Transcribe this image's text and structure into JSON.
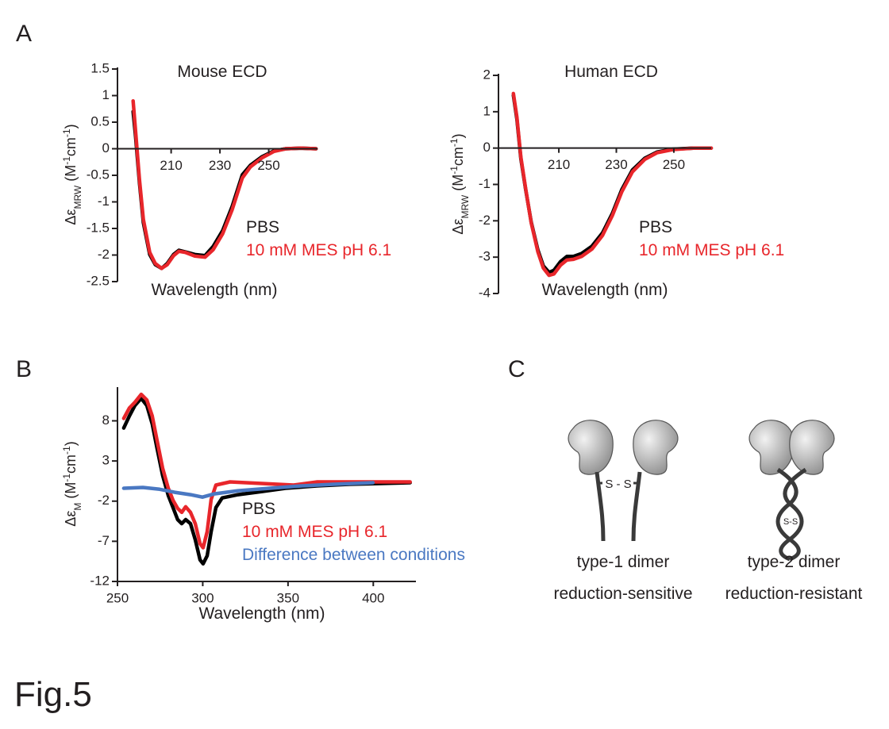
{
  "panel_labels": [
    "A",
    "B",
    "C"
  ],
  "figure_label": "Fig.5",
  "chart_data": [
    {
      "type": "line",
      "title": "Mouse ECD",
      "x_label": "Wavelength (nm)",
      "y_label": [
        [
          "Δε",
          ""
        ],
        [
          "MRW",
          "sub"
        ],
        [
          " (M",
          ""
        ],
        [
          "-1",
          "sup"
        ],
        [
          "cm",
          ""
        ],
        [
          "-1",
          "sup"
        ],
        [
          ")",
          ""
        ]
      ],
      "xlim": [
        188,
        270
      ],
      "xticks": [
        210,
        230,
        250
      ],
      "ylim": [
        -2.5,
        1.5
      ],
      "yticks": [
        1.5,
        1,
        0.5,
        0,
        -0.5,
        -1,
        -1.5,
        -2,
        -2.5
      ],
      "x_axis_at": "zero",
      "legend": "lower right",
      "series": [
        {
          "name": "PBS",
          "color": "#000000",
          "x": [
            194.4,
            195.4,
            197,
            198.6,
            201.2,
            203.5,
            206.1,
            208.4,
            211,
            213.2,
            215.8,
            219.7,
            223.9,
            227.2,
            231.1,
            235,
            239.2,
            242.5,
            247.3,
            252.2,
            257,
            263.6,
            269.4
          ],
          "values": [
            0.7,
            0.25,
            -0.64,
            -1.39,
            -1.99,
            -2.18,
            -2.25,
            -2.16,
            -1.99,
            -1.91,
            -1.94,
            -1.99,
            -2.01,
            -1.84,
            -1.54,
            -1.09,
            -0.49,
            -0.31,
            -0.15,
            -0.04,
            0,
            0.01,
            0
          ]
        },
        {
          "name": "10 mM MES pH 6.1",
          "color": "#e8262b",
          "x": [
            194.4,
            195.4,
            197,
            198.6,
            201.2,
            203.5,
            206.1,
            208.4,
            211,
            213.2,
            215.8,
            219.7,
            223.9,
            227.2,
            231.1,
            235,
            239.2,
            242.5,
            247.3,
            252.2,
            257,
            263.6,
            269.4
          ],
          "values": [
            0.9,
            0.35,
            -0.58,
            -1.33,
            -1.95,
            -2.16,
            -2.25,
            -2.18,
            -2.01,
            -1.93,
            -1.95,
            -2.02,
            -2.04,
            -1.9,
            -1.6,
            -1.15,
            -0.55,
            -0.34,
            -0.17,
            -0.05,
            0,
            0.01,
            0
          ]
        }
      ]
    },
    {
      "type": "line",
      "title": "Human ECD",
      "x_label": "Wavelength (nm)",
      "y_label": [
        [
          "Δε",
          ""
        ],
        [
          "MRW",
          "sub"
        ],
        [
          " (M",
          ""
        ],
        [
          "-1",
          "sup"
        ],
        [
          "cm",
          ""
        ],
        [
          "-1",
          "sup"
        ],
        [
          ")",
          ""
        ]
      ],
      "xlim": [
        189,
        263
      ],
      "xticks": [
        210,
        230,
        250
      ],
      "ylim": [
        -4,
        2
      ],
      "yticks": [
        2,
        1,
        0,
        -1,
        -2,
        -3,
        -4
      ],
      "x_axis_at": "zero",
      "legend": "lower right",
      "series": [
        {
          "name": "PBS",
          "color": "#000000",
          "x": [
            194.2,
            195.4,
            196.8,
            198.5,
            200.4,
            202.7,
            204.6,
            206.6,
            208.3,
            210.6,
            212.8,
            215.1,
            217.9,
            221.5,
            225.2,
            228.6,
            231.9,
            235.6,
            239.9,
            244.1,
            249.7,
            256.8,
            263
          ],
          "values": [
            1.45,
            0.8,
            -0.29,
            -1.16,
            -2.04,
            -2.8,
            -3.24,
            -3.42,
            -3.36,
            -3.12,
            -2.98,
            -2.98,
            -2.9,
            -2.7,
            -2.33,
            -1.8,
            -1.14,
            -0.6,
            -0.28,
            -0.11,
            -0.03,
            0,
            0
          ]
        },
        {
          "name": "10 mM MES pH 6.1",
          "color": "#e8262b",
          "x": [
            194.2,
            195.4,
            196.8,
            198.5,
            200.4,
            202.7,
            204.6,
            206.6,
            208.3,
            210.6,
            212.8,
            215.1,
            217.9,
            221.5,
            225.2,
            228.6,
            231.9,
            235.6,
            239.9,
            244.1,
            249.7,
            256.8,
            263
          ],
          "values": [
            1.5,
            0.85,
            -0.25,
            -1.14,
            -2.06,
            -2.85,
            -3.3,
            -3.5,
            -3.46,
            -3.22,
            -3.08,
            -3.06,
            -2.98,
            -2.78,
            -2.4,
            -1.86,
            -1.2,
            -0.65,
            -0.31,
            -0.13,
            -0.04,
            0,
            0
          ]
        }
      ]
    },
    {
      "type": "line",
      "x_label": "Wavelength (nm)",
      "y_label": [
        [
          "Δε",
          ""
        ],
        [
          "M",
          "sub"
        ],
        [
          " (M",
          ""
        ],
        [
          "-1",
          "sup"
        ],
        [
          "cm",
          ""
        ],
        [
          "-1",
          "sup"
        ],
        [
          ")",
          ""
        ]
      ],
      "xlim": [
        250,
        425
      ],
      "xticks": [
        250,
        300,
        350,
        400
      ],
      "ylim": [
        -12,
        12
      ],
      "yticks": [
        8,
        3,
        -2,
        -7,
        -12
      ],
      "x_axis_at": "bottom",
      "legend": "lower right",
      "series": [
        {
          "name": "PBS",
          "color": "#000000",
          "x": [
            253.7,
            257,
            260.2,
            263.9,
            267.2,
            270.4,
            273.2,
            276.5,
            279.8,
            282.6,
            285.3,
            287.7,
            290,
            292.8,
            295.6,
            298.4,
            300.2,
            302.6,
            304.9,
            307.7,
            311.4,
            320.7,
            334.7,
            348.6,
            367.2,
            385.8,
            404.4,
            421.6
          ],
          "values": [
            7.1,
            8.6,
            9.9,
            10.8,
            9.9,
            7.6,
            4.6,
            1.2,
            -1.3,
            -2.8,
            -4.3,
            -4.8,
            -4.3,
            -4.8,
            -6.8,
            -9.3,
            -9.8,
            -8.8,
            -5.8,
            -2.8,
            -1.6,
            -1.2,
            -0.8,
            -0.4,
            -0.1,
            0.1,
            0.2,
            0.3
          ]
        },
        {
          "name": "10 mM MES pH 6.1",
          "color": "#e8262b",
          "x": [
            253.7,
            257,
            260.2,
            263.9,
            267.2,
            270.4,
            273.2,
            276.5,
            279.8,
            282.6,
            285.3,
            287.7,
            290,
            292.8,
            295.6,
            298.4,
            300.2,
            302.6,
            304.9,
            307.7,
            316,
            334.7,
            353.3,
            367.2,
            385.8,
            404.4,
            421.6
          ],
          "values": [
            8.3,
            9.6,
            10.3,
            11.3,
            10.6,
            8.6,
            5.6,
            2.1,
            -0.4,
            -1.9,
            -2.9,
            -3.4,
            -2.7,
            -3.4,
            -4.8,
            -7.3,
            -7.8,
            -5.8,
            -1.8,
            0,
            0.4,
            0.2,
            0,
            0.4,
            0.4,
            0.4,
            0.4
          ]
        },
        {
          "name": "Difference between conditions",
          "color": "#4a78c2",
          "x": [
            253.7,
            264.9,
            274.2,
            283.5,
            292.8,
            299.8,
            306.8,
            320.7,
            339.3,
            358,
            376.6,
            399.8
          ],
          "values": [
            -0.4,
            -0.3,
            -0.5,
            -0.9,
            -1.2,
            -1.5,
            -1.1,
            -0.7,
            -0.4,
            -0.1,
            0.1,
            0.3
          ]
        }
      ]
    }
  ],
  "diagram": {
    "dimers": [
      {
        "bond": "S - S",
        "name": "type-1 dimer",
        "property": "reduction-sensitive"
      },
      {
        "bond": "S-S",
        "name": "type-2 dimer",
        "property": "reduction-resistant"
      }
    ]
  }
}
